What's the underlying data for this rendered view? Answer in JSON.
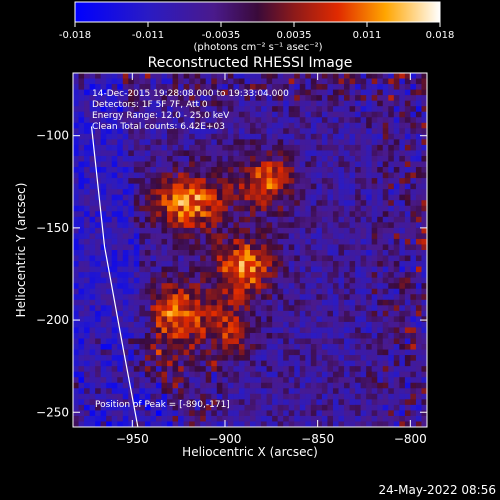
{
  "chart_data": {
    "type": "heatmap",
    "title": "Reconstructed RHESSI Image",
    "xlabel": "Heliocentric X (arcsec)",
    "ylabel": "Heliocentric Y (arcsec)",
    "xlim": [
      -982,
      -791
    ],
    "ylim": [
      -258,
      -66
    ],
    "xticks": [
      -950,
      -900,
      -850,
      -800
    ],
    "yticks": [
      -100,
      -150,
      -200,
      -250
    ],
    "colorbar": {
      "ticks": [
        "-0.018",
        "-0.011",
        "-0.0035",
        "0.0035",
        "0.011",
        "0.018"
      ],
      "range": [
        -0.018,
        0.018
      ],
      "label": "(photons cm⁻² s⁻¹ asec⁻²)"
    },
    "sources": [
      {
        "x": -890,
        "y": -171,
        "peak": 0.018
      },
      {
        "x": -927,
        "y": -195,
        "peak": 0.016
      },
      {
        "x": -878,
        "y": -125,
        "peak": 0.014
      },
      {
        "x": -913,
        "y": -135,
        "peak": 0.012
      },
      {
        "x": -928,
        "y": -137,
        "peak": 0.01
      },
      {
        "x": -900,
        "y": -205,
        "peak": 0.011
      },
      {
        "x": -935,
        "y": -222,
        "peak": 0.007
      }
    ],
    "limb_curve": [
      [
        -972,
        -95
      ],
      [
        -965,
        -160
      ],
      [
        -955,
        -215
      ],
      [
        -947,
        -258
      ]
    ],
    "annotations": [
      "14-Dec-2015 19:28:08.000 to 19:33:04.000",
      "Detectors: 1F 5F 7F, Att 0",
      "Energy Range: 12.0 - 25.0 keV",
      "Clean    Total counts: 6.42E+03"
    ],
    "peak_label": "Position of Peak = [-890,-171]",
    "timestamp": "24-May-2022 08:56"
  }
}
